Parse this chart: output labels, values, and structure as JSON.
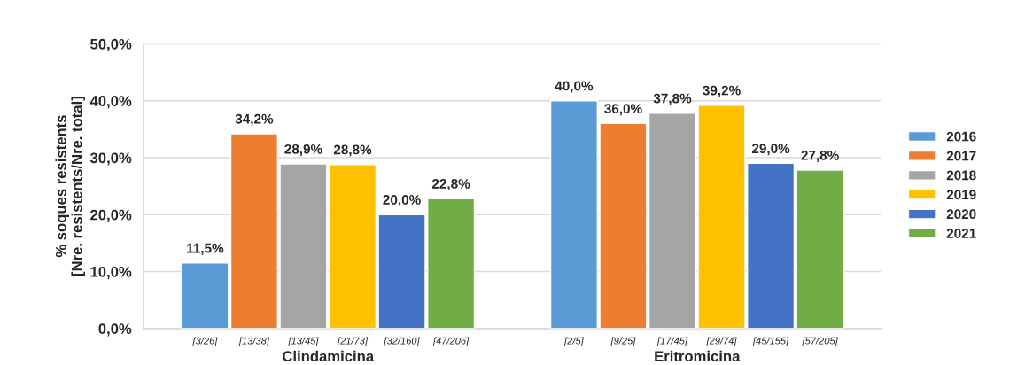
{
  "chart_data": {
    "type": "bar",
    "ylabel": "% soques resistents\n[Nre. resistents/Nre. total]",
    "categories": [
      "Clindamicina",
      "Eritromicina"
    ],
    "series": [
      {
        "name": "2016",
        "color": "#5b9bd5",
        "values": [
          11.5,
          40.0
        ],
        "value_labels": [
          "11,5%",
          "40,0%"
        ]
      },
      {
        "name": "2017",
        "color": "#ed7d31",
        "values": [
          34.2,
          36.0
        ],
        "value_labels": [
          "34,2%",
          "36,0%"
        ]
      },
      {
        "name": "2018",
        "color": "#a5a5a5",
        "values": [
          28.9,
          37.8
        ],
        "value_labels": [
          "28,9%",
          "37,8%"
        ]
      },
      {
        "name": "2019",
        "color": "#ffc000",
        "values": [
          28.8,
          39.2
        ],
        "value_labels": [
          "28,8%",
          "39,2%"
        ]
      },
      {
        "name": "2020",
        "color": "#4472c4",
        "values": [
          20.0,
          29.0
        ],
        "value_labels": [
          "20,0%",
          "29,0%"
        ]
      },
      {
        "name": "2021",
        "color": "#70ad47",
        "values": [
          22.8,
          27.8
        ],
        "value_labels": [
          "22,8%",
          "27,8%"
        ]
      }
    ],
    "ylim": [
      0,
      50
    ],
    "yticks": [
      {
        "value": 0,
        "label": "0,0%"
      },
      {
        "value": 10,
        "label": "10,0%"
      },
      {
        "value": 20,
        "label": "20,0%"
      },
      {
        "value": 30,
        "label": "30,0%"
      },
      {
        "value": 40,
        "label": "40,0%"
      },
      {
        "value": 50,
        "label": "50,0%"
      }
    ],
    "grid": "y",
    "legend": "right",
    "annotations": [
      "[3/26]",
      "[13/38]",
      "[13/45]",
      "[21/73]",
      "[32/160]",
      "[47/206]",
      "[2/5]",
      "[9/25]",
      "[17/45]",
      "[29/74]",
      "[45/155]",
      "[57/205]"
    ]
  }
}
